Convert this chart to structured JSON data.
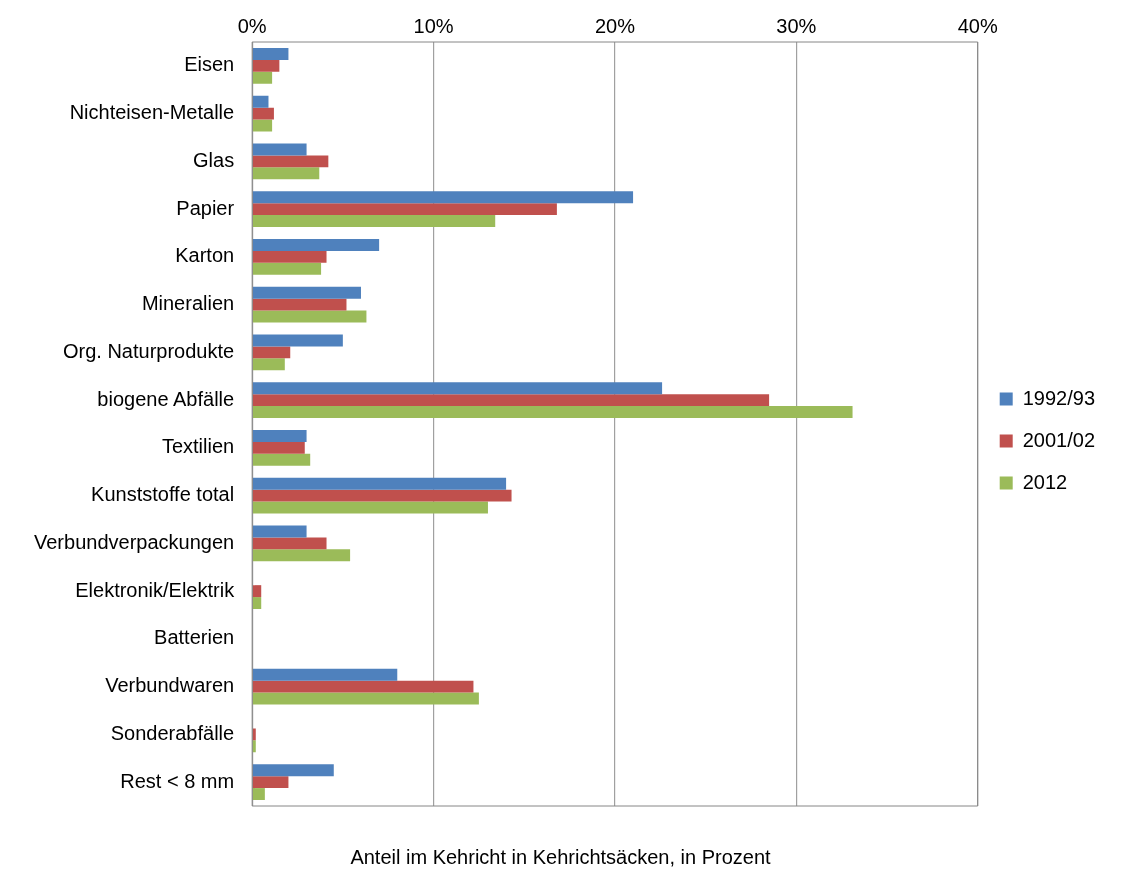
{
  "chart_data": {
    "type": "bar",
    "orientation": "horizontal",
    "xlabel": "Anteil im Kehricht in Kehrichtsäcken, in Prozent",
    "categories": [
      "Eisen",
      "Nichteisen-Metalle",
      "Glas",
      "Papier",
      "Karton",
      "Mineralien",
      "Org. Naturprodukte",
      "biogene Abfälle",
      "Textilien",
      "Kunststoffe total",
      "Verbundverpackungen",
      "Elektronik/Elektrik",
      "Batterien",
      "Verbundwaren",
      "Sonderabfälle",
      "Rest < 8 mm"
    ],
    "series": [
      {
        "name": "1992/93",
        "color": "#4f81bd",
        "values": [
          2.0,
          0.9,
          3.0,
          21.0,
          7.0,
          6.0,
          5.0,
          22.6,
          3.0,
          14.0,
          3.0,
          null,
          null,
          8.0,
          null,
          4.5
        ]
      },
      {
        "name": "2001/02",
        "color": "#c0504d",
        "values": [
          1.5,
          1.2,
          4.2,
          16.8,
          4.1,
          5.2,
          2.1,
          28.5,
          2.9,
          14.3,
          4.1,
          0.5,
          null,
          12.2,
          0.2,
          2.0
        ]
      },
      {
        "name": "2012",
        "color": "#9bbb59",
        "values": [
          1.1,
          1.1,
          3.7,
          13.4,
          3.8,
          6.3,
          1.8,
          33.1,
          3.2,
          13.0,
          5.4,
          0.5,
          null,
          12.5,
          0.2,
          0.7
        ]
      }
    ],
    "xlim": [
      0,
      40
    ],
    "xticks": [
      {
        "value": 0,
        "label": "0%"
      },
      {
        "value": 10,
        "label": "10%"
      },
      {
        "value": 20,
        "label": "20%"
      },
      {
        "value": 30,
        "label": "30%"
      },
      {
        "value": 40,
        "label": "40%"
      }
    ],
    "grid": "x",
    "legend": "right"
  }
}
